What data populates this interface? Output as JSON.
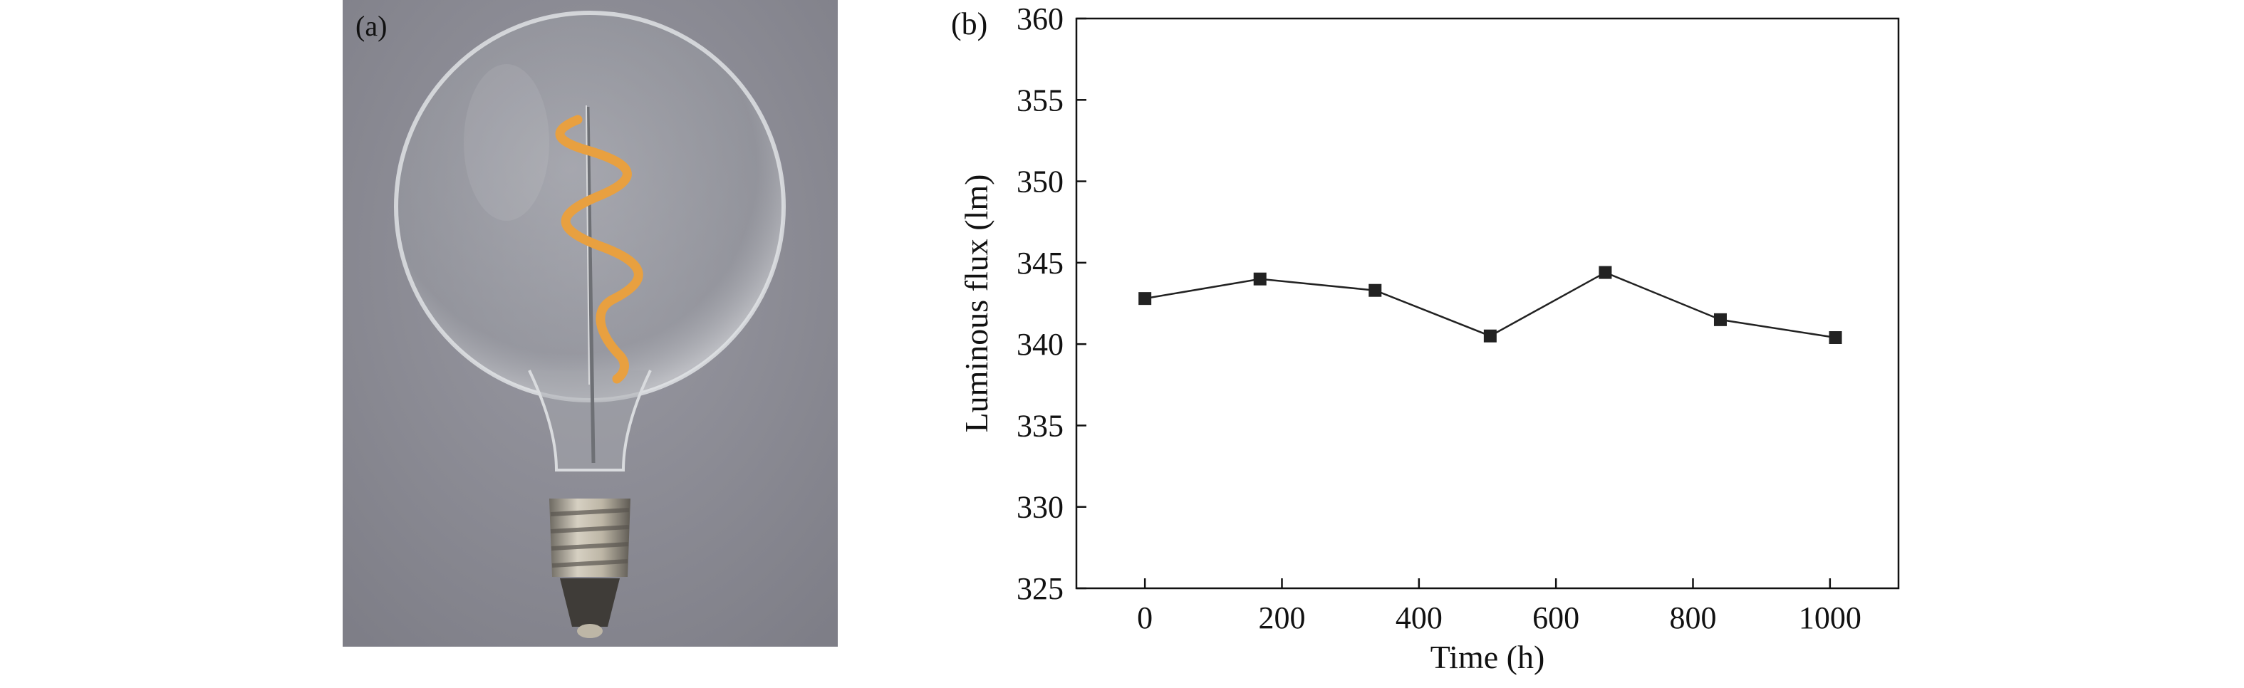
{
  "panels": {
    "photo_label": "(a)",
    "chart_label": "(b)"
  },
  "photo": {
    "icon": "led-filament-bulb-icon",
    "colors": {
      "background": "#8d8d95",
      "filament": "#e8a040",
      "base": "#b8b2a4"
    }
  },
  "chart_data": {
    "type": "line",
    "title": "",
    "xlabel": "Time (h)",
    "ylabel": "Luminous flux (lm)",
    "xlim": [
      -100,
      1100
    ],
    "ylim": [
      325,
      360
    ],
    "xticks": [
      0,
      200,
      400,
      600,
      800,
      1000
    ],
    "yticks": [
      325,
      330,
      335,
      340,
      345,
      350,
      355,
      360
    ],
    "grid": false,
    "legend": "none",
    "marker": "square",
    "color": "#222222",
    "series": [
      {
        "x": [
          0,
          168,
          336,
          504,
          672,
          840,
          1008
        ],
        "y": [
          342.8,
          344.0,
          343.3,
          340.5,
          344.4,
          341.5,
          340.4
        ]
      }
    ]
  }
}
